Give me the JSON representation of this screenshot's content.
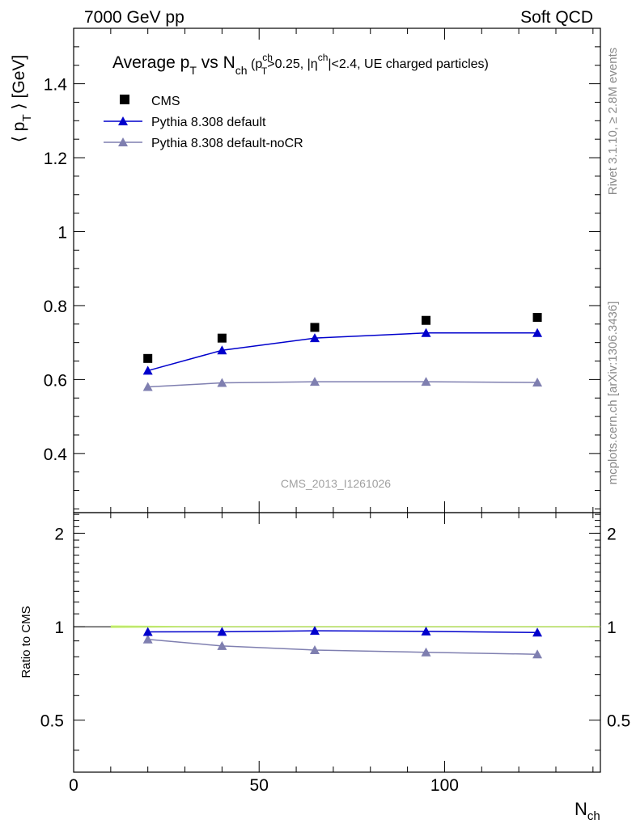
{
  "header": {
    "left": "7000 GeV pp",
    "right": "Soft QCD"
  },
  "side_labels": {
    "rivet": "Rivet 3.1.10, ≥ 2.8M events",
    "mcplots": "mcplots.cern.ch [arXiv:1306.3436]"
  },
  "main_plot": {
    "title": {
      "t1": "Average p",
      "t1sub": "T",
      "t2": " vs N",
      "t2sub": "ch",
      "t3": " (p",
      "t3sup": "ch",
      "t3sub": "T",
      "t4": ">0.25, |η",
      "t4sup": "ch",
      "t5": "|<2.4, UE charged particles)"
    },
    "ylabel": {
      "pre": "⟨ p",
      "sub": "T",
      "post": " ⟩ [GeV]"
    },
    "watermark": "CMS_2013_I1261026"
  },
  "ratio_plot": {
    "ylabel": "Ratio to CMS"
  },
  "xaxis": {
    "label": "N",
    "label_sub": "ch"
  },
  "colors": {
    "cms": "#000000",
    "default": "#0000cc",
    "nocr": "#7f7fb0",
    "band": "#ccff66"
  },
  "chart_data": [
    {
      "type": "scatter",
      "panel": "main",
      "xlim": [
        0,
        142
      ],
      "ylim": [
        0.24,
        1.55
      ],
      "yticks_major": [
        0.4,
        0.6,
        0.8,
        1.0,
        1.2,
        1.4
      ],
      "ytick_labels": [
        "0.4",
        "0.6",
        "0.8",
        "1",
        "1.2",
        "1.4"
      ],
      "legend_position": "top-left",
      "series": [
        {
          "name": "CMS",
          "kind": "data",
          "x": [
            20,
            40,
            65,
            95,
            125
          ],
          "y": [
            0.657,
            0.712,
            0.741,
            0.76,
            0.768
          ]
        },
        {
          "name": "Pythia 8.308 default",
          "kind": "line-triangle",
          "x": [
            20,
            40,
            65,
            95,
            125
          ],
          "y": [
            0.624,
            0.679,
            0.712,
            0.726,
            0.726
          ]
        },
        {
          "name": "Pythia 8.308 default-noCR",
          "kind": "line-triangle",
          "x": [
            20,
            40,
            65,
            95,
            125
          ],
          "y": [
            0.58,
            0.591,
            0.594,
            0.594,
            0.592
          ]
        }
      ]
    },
    {
      "type": "line",
      "panel": "ratio",
      "xlim": [
        0,
        142
      ],
      "ylim": [
        0.34,
        2.33
      ],
      "yticks_labeled": [
        0.5,
        1,
        2
      ],
      "ytick_labels": [
        "0.5",
        "1",
        "2"
      ],
      "xticks_major": [
        0,
        50,
        100
      ],
      "xtick_labels": [
        "0",
        "50",
        "100"
      ],
      "series": [
        {
          "name": "Pythia 8.308 default",
          "x": [
            20,
            40,
            65,
            95,
            125
          ],
          "y": [
            0.962,
            0.963,
            0.97,
            0.966,
            0.958
          ]
        },
        {
          "name": "Pythia 8.308 default-noCR",
          "x": [
            20,
            40,
            65,
            95,
            125
          ],
          "y": [
            0.91,
            0.867,
            0.841,
            0.827,
            0.815
          ]
        }
      ],
      "band": {
        "x": [
          10,
          30,
          142
        ],
        "y_low": [
          0.99,
          0.995,
          0.995
        ],
        "y_high": [
          1.01,
          1.005,
          1.005
        ]
      }
    }
  ]
}
